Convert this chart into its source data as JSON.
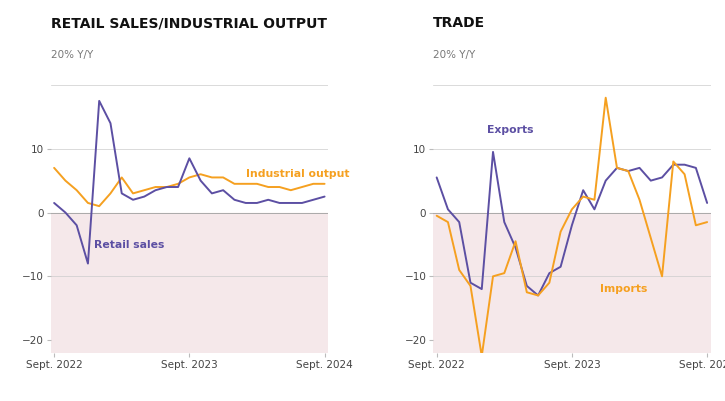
{
  "title_left": "RETAIL SALES/INDUSTRIAL OUTPUT",
  "title_right": "TRADE",
  "ylabel": "20% Y/Y",
  "ylim": [
    -22,
    22
  ],
  "yticks": [
    -20,
    -10,
    0,
    10
  ],
  "background_color": "#ffffff",
  "shading_color": "#f5e8ea",
  "purple_color": "#5c4fa3",
  "orange_color": "#f5a020",
  "n_points": 25,
  "retail_sales": [
    1.5,
    0.0,
    -2.0,
    -8.0,
    17.5,
    14.0,
    3.0,
    2.0,
    2.5,
    3.5,
    4.0,
    4.0,
    8.5,
    5.0,
    3.0,
    3.5,
    2.0,
    1.5,
    1.5,
    2.0,
    1.5,
    1.5,
    1.5,
    2.0,
    2.5
  ],
  "industrial_output": [
    7.0,
    5.0,
    3.5,
    1.5,
    1.0,
    3.0,
    5.5,
    3.0,
    3.5,
    4.0,
    4.0,
    4.5,
    5.5,
    6.0,
    5.5,
    5.5,
    4.5,
    4.5,
    4.5,
    4.0,
    4.0,
    3.5,
    4.0,
    4.5,
    4.5
  ],
  "exports": [
    5.5,
    0.5,
    -1.5,
    -11.0,
    -12.0,
    9.5,
    -1.5,
    -5.5,
    -11.5,
    -13.0,
    -9.5,
    -8.5,
    -2.0,
    3.5,
    0.5,
    5.0,
    7.0,
    6.5,
    7.0,
    5.0,
    5.5,
    7.5,
    7.5,
    7.0,
    1.5
  ],
  "imports": [
    -0.5,
    -1.5,
    -9.0,
    -11.5,
    -22.5,
    -10.0,
    -9.5,
    -4.5,
    -12.5,
    -13.0,
    -11.0,
    -3.0,
    0.5,
    2.5,
    2.0,
    18.0,
    7.0,
    6.5,
    2.0,
    -4.0,
    -10.0,
    8.0,
    6.0,
    -2.0,
    -1.5
  ]
}
